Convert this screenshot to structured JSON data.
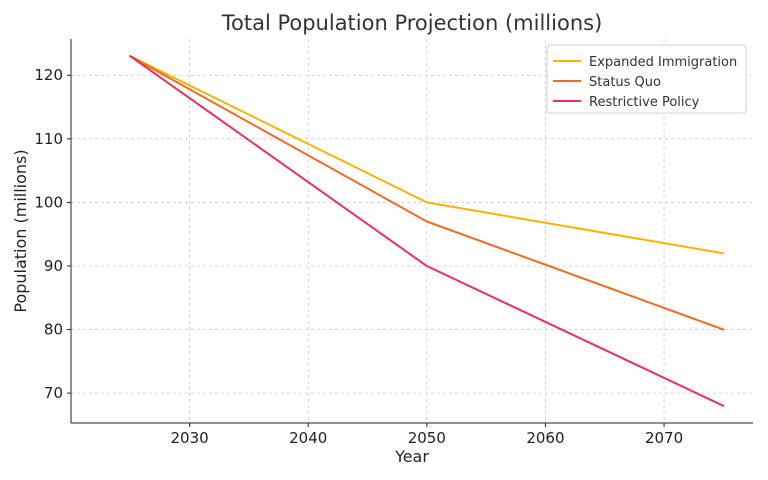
{
  "chart_data": {
    "type": "line",
    "title": "Total Population Projection (millions)",
    "xlabel": "Year",
    "ylabel": "Population (millions)",
    "x": [
      2025,
      2050,
      2075
    ],
    "xlim": [
      2020,
      2077.5
    ],
    "ylim": [
      65.3,
      125.7
    ],
    "xticks": [
      2030,
      2040,
      2050,
      2060,
      2070
    ],
    "yticks": [
      70,
      80,
      90,
      100,
      110,
      120
    ],
    "grid": true,
    "legend_position": "top-right",
    "series": [
      {
        "name": "Expanded Immigration",
        "color": "#ffb000",
        "values": [
          123,
          100,
          92
        ]
      },
      {
        "name": "Status Quo",
        "color": "#f26b21",
        "values": [
          123,
          97,
          80
        ]
      },
      {
        "name": "Restrictive Policy",
        "color": "#e8315b",
        "values": [
          123,
          90,
          68
        ]
      }
    ]
  }
}
